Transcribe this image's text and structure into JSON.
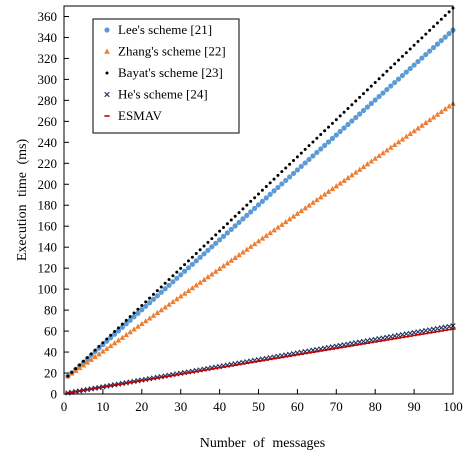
{
  "chart_data": {
    "type": "scatter",
    "xlabel": "Number of messages",
    "ylabel": "Execution time (ms)",
    "xlim": [
      0,
      100
    ],
    "ylim": [
      0,
      370
    ],
    "xticks": [
      0,
      10,
      20,
      30,
      40,
      50,
      60,
      70,
      80,
      90,
      100
    ],
    "yticks": [
      0,
      20,
      40,
      60,
      80,
      100,
      120,
      140,
      160,
      180,
      200,
      220,
      240,
      260,
      280,
      300,
      320,
      340,
      360
    ],
    "grid": false,
    "legend_position": "top-left",
    "series": [
      {
        "name": "Lee's scheme [21]",
        "marker": "circle",
        "color": "#5b9bd5",
        "x_start": 1,
        "x_end": 100,
        "y_start": 17,
        "y_end": 347
      },
      {
        "name": "Zhang's scheme [22]",
        "marker": "triangle",
        "color": "#ed7d31",
        "x_start": 1,
        "x_end": 100,
        "y_start": 17,
        "y_end": 277
      },
      {
        "name": "Bayat's scheme [23]",
        "marker": "dot",
        "color": "#000000",
        "x_start": 1,
        "x_end": 100,
        "y_start": 17,
        "y_end": 368
      },
      {
        "name": "He's scheme [24]",
        "marker": "x",
        "color": "#1f3864",
        "x_start": 1,
        "x_end": 100,
        "y_start": 1,
        "y_end": 65
      },
      {
        "name": "ESMAV",
        "marker": "dash",
        "color": "#c00000",
        "x_start": 1,
        "x_end": 100,
        "y_start": 1,
        "y_end": 62
      }
    ]
  }
}
